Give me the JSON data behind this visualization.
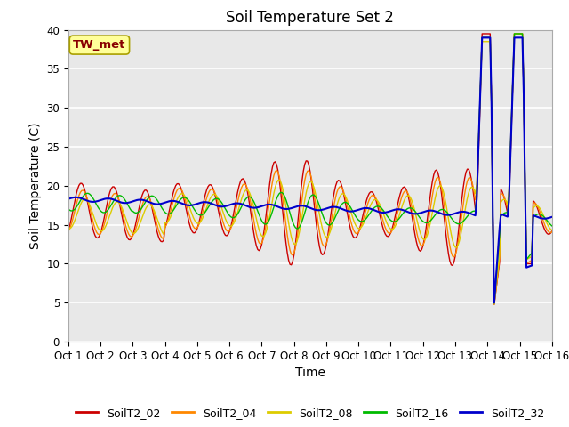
{
  "title": "Soil Temperature Set 2",
  "xlabel": "Time",
  "ylabel": "Soil Temperature (C)",
  "ylim": [
    0,
    40
  ],
  "xlim": [
    0,
    15
  ],
  "xtick_labels": [
    "Oct 1",
    "Oct 2",
    "Oct 3",
    "Oct 4",
    "Oct 5",
    "Oct 6",
    "Oct 7",
    "Oct 8",
    "Oct 9",
    "Oct 10",
    "Oct 11",
    "Oct 12",
    "Oct 13",
    "Oct 14",
    "Oct 15",
    "Oct 16"
  ],
  "ytick_vals": [
    0,
    5,
    10,
    15,
    20,
    25,
    30,
    35,
    40
  ],
  "series_colors": [
    "#cc0000",
    "#ff8800",
    "#ddcc00",
    "#00bb00",
    "#0000cc"
  ],
  "series_labels": [
    "SoilT2_02",
    "SoilT2_04",
    "SoilT2_08",
    "SoilT2_16",
    "SoilT2_32"
  ],
  "annotation_text": "TW_met",
  "annotation_bg": "#ffff99",
  "annotation_border": "#aaa000",
  "background_color": "#e8e8e8",
  "title_fontsize": 12,
  "axis_fontsize": 10,
  "tick_fontsize": 8.5,
  "legend_fontsize": 9
}
